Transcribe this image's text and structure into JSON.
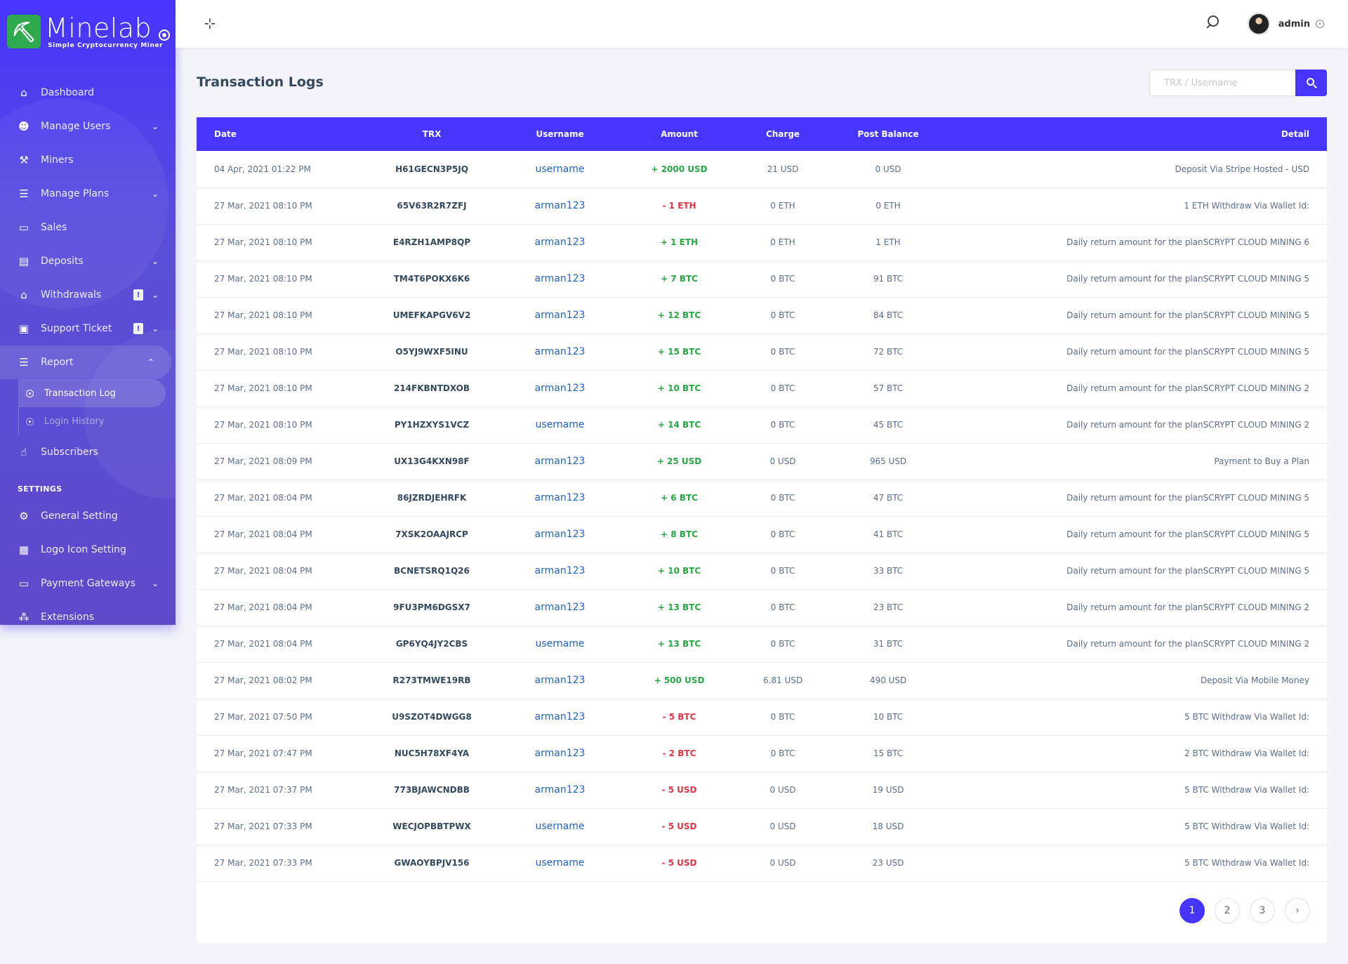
{
  "brand": {
    "name": "Minelab",
    "tagline": "Simple Cryptocurrency Miner"
  },
  "sidebar": {
    "items": [
      {
        "label": "Dashboard",
        "icon": "home-icon",
        "glyph": "⌂"
      },
      {
        "label": "Manage Users",
        "icon": "users-icon",
        "glyph": "☻",
        "arrow": "⌄"
      },
      {
        "label": "Miners",
        "icon": "hammer-icon",
        "glyph": "⚒"
      },
      {
        "label": "Manage Plans",
        "icon": "list-icon",
        "glyph": "☰",
        "arrow": "⌄"
      },
      {
        "label": "Sales",
        "icon": "card-icon",
        "glyph": "▭"
      },
      {
        "label": "Deposits",
        "icon": "wallet-icon",
        "glyph": "▤",
        "arrow": "⌄"
      },
      {
        "label": "Withdrawals",
        "icon": "bank-icon",
        "glyph": "⌂",
        "badge": "!",
        "arrow": "⌄"
      },
      {
        "label": "Support Ticket",
        "icon": "ticket-icon",
        "glyph": "▣",
        "badge": "!",
        "arrow": "⌄"
      },
      {
        "label": "Report",
        "icon": "report-icon",
        "glyph": "☰",
        "arrow": "⌃"
      }
    ],
    "report_sub": [
      {
        "label": "Transaction Log"
      },
      {
        "label": "Login History"
      }
    ],
    "after": [
      {
        "label": "Subscribers",
        "icon": "thumbs-up-icon",
        "glyph": "☝"
      }
    ],
    "settings_title": "SETTINGS",
    "settings": [
      {
        "label": "General Setting",
        "icon": "gear-icon",
        "glyph": "⚙"
      },
      {
        "label": "Logo Icon Setting",
        "icon": "image-icon",
        "glyph": "▦"
      },
      {
        "label": "Payment Gateways",
        "icon": "credit-card-icon",
        "glyph": "▭",
        "arrow": "⌄"
      },
      {
        "label": "Extensions",
        "icon": "cubes-icon",
        "glyph": "⁂"
      }
    ]
  },
  "topbar": {
    "user_name": "admin"
  },
  "page": {
    "title": "Transaction Logs"
  },
  "search": {
    "placeholder": "TRX / Username"
  },
  "table": {
    "headers": [
      "Date",
      "TRX",
      "Username",
      "Amount",
      "Charge",
      "Post Balance",
      "Detail"
    ],
    "rows": [
      {
        "date": "04 Apr, 2021 01:22 PM",
        "trx": "H61GECN3P5JQ",
        "user": "username",
        "amount": "+ 2000 USD",
        "type": "pos",
        "charge": "21 USD",
        "post": "0 USD",
        "detail": "Deposit Via Stripe Hosted - USD"
      },
      {
        "date": "27 Mar, 2021 08:10 PM",
        "trx": "65V63R2R7ZFJ",
        "user": "arman123",
        "amount": "- 1 ETH",
        "type": "neg",
        "charge": "0 ETH",
        "post": "0 ETH",
        "detail": "1 ETH Withdraw Via Wallet Id:"
      },
      {
        "date": "27 Mar, 2021 08:10 PM",
        "trx": "E4RZH1AMP8QP",
        "user": "arman123",
        "amount": "+ 1 ETH",
        "type": "pos",
        "charge": "0 ETH",
        "post": "1 ETH",
        "detail": "Daily return amount for the planSCRYPT CLOUD MINING 6"
      },
      {
        "date": "27 Mar, 2021 08:10 PM",
        "trx": "TM4T6POKX6K6",
        "user": "arman123",
        "amount": "+ 7 BTC",
        "type": "pos",
        "charge": "0 BTC",
        "post": "91 BTC",
        "detail": "Daily return amount for the planSCRYPT CLOUD MINING 5"
      },
      {
        "date": "27 Mar, 2021 08:10 PM",
        "trx": "UMEFKAPGV6V2",
        "user": "arman123",
        "amount": "+ 12 BTC",
        "type": "pos",
        "charge": "0 BTC",
        "post": "84 BTC",
        "detail": "Daily return amount for the planSCRYPT CLOUD MINING 5"
      },
      {
        "date": "27 Mar, 2021 08:10 PM",
        "trx": "O5YJ9WXF5INU",
        "user": "arman123",
        "amount": "+ 15 BTC",
        "type": "pos",
        "charge": "0 BTC",
        "post": "72 BTC",
        "detail": "Daily return amount for the planSCRYPT CLOUD MINING 5"
      },
      {
        "date": "27 Mar, 2021 08:10 PM",
        "trx": "214FKBNTDXOB",
        "user": "arman123",
        "amount": "+ 10 BTC",
        "type": "pos",
        "charge": "0 BTC",
        "post": "57 BTC",
        "detail": "Daily return amount for the planSCRYPT CLOUD MINING 2"
      },
      {
        "date": "27 Mar, 2021 08:10 PM",
        "trx": "PY1HZXYS1VCZ",
        "user": "username",
        "amount": "+ 14 BTC",
        "type": "pos",
        "charge": "0 BTC",
        "post": "45 BTC",
        "detail": "Daily return amount for the planSCRYPT CLOUD MINING 2"
      },
      {
        "date": "27 Mar, 2021 08:09 PM",
        "trx": "UX13G4KXN98F",
        "user": "arman123",
        "amount": "+ 25 USD",
        "type": "pos",
        "charge": "0 USD",
        "post": "965 USD",
        "detail": "Payment to Buy a Plan"
      },
      {
        "date": "27 Mar, 2021 08:04 PM",
        "trx": "86JZRDJEHRFK",
        "user": "arman123",
        "amount": "+ 6 BTC",
        "type": "pos",
        "charge": "0 BTC",
        "post": "47 BTC",
        "detail": "Daily return amount for the planSCRYPT CLOUD MINING 5"
      },
      {
        "date": "27 Mar, 2021 08:04 PM",
        "trx": "7XSK2OAAJRCP",
        "user": "arman123",
        "amount": "+ 8 BTC",
        "type": "pos",
        "charge": "0 BTC",
        "post": "41 BTC",
        "detail": "Daily return amount for the planSCRYPT CLOUD MINING 5"
      },
      {
        "date": "27 Mar, 2021 08:04 PM",
        "trx": "BCNETSRQ1Q26",
        "user": "arman123",
        "amount": "+ 10 BTC",
        "type": "pos",
        "charge": "0 BTC",
        "post": "33 BTC",
        "detail": "Daily return amount for the planSCRYPT CLOUD MINING 5"
      },
      {
        "date": "27 Mar, 2021 08:04 PM",
        "trx": "9FU3PM6DGSX7",
        "user": "arman123",
        "amount": "+ 13 BTC",
        "type": "pos",
        "charge": "0 BTC",
        "post": "23 BTC",
        "detail": "Daily return amount for the planSCRYPT CLOUD MINING 2"
      },
      {
        "date": "27 Mar, 2021 08:04 PM",
        "trx": "GP6YQ4JY2CBS",
        "user": "username",
        "amount": "+ 13 BTC",
        "type": "pos",
        "charge": "0 BTC",
        "post": "31 BTC",
        "detail": "Daily return amount for the planSCRYPT CLOUD MINING 2"
      },
      {
        "date": "27 Mar, 2021 08:02 PM",
        "trx": "R273TMWE19RB",
        "user": "arman123",
        "amount": "+ 500 USD",
        "type": "pos",
        "charge": "6.81 USD",
        "post": "490 USD",
        "detail": "Deposit Via Mobile Money"
      },
      {
        "date": "27 Mar, 2021 07:50 PM",
        "trx": "U9SZOT4DWGG8",
        "user": "arman123",
        "amount": "- 5 BTC",
        "type": "neg",
        "charge": "0 BTC",
        "post": "10 BTC",
        "detail": "5 BTC Withdraw Via Wallet Id:"
      },
      {
        "date": "27 Mar, 2021 07:47 PM",
        "trx": "NUC5H78XF4YA",
        "user": "arman123",
        "amount": "- 2 BTC",
        "type": "neg",
        "charge": "0 BTC",
        "post": "15 BTC",
        "detail": "2 BTC Withdraw Via Wallet Id:"
      },
      {
        "date": "27 Mar, 2021 07:37 PM",
        "trx": "773BJAWCNDBB",
        "user": "arman123",
        "amount": "- 5 USD",
        "type": "neg",
        "charge": "0 USD",
        "post": "19 USD",
        "detail": "5 BTC Withdraw Via Wallet Id:"
      },
      {
        "date": "27 Mar, 2021 07:33 PM",
        "trx": "WECJOPBBTPWX",
        "user": "username",
        "amount": "- 5 USD",
        "type": "neg",
        "charge": "0 USD",
        "post": "18 USD",
        "detail": "5 BTC Withdraw Via Wallet Id:"
      },
      {
        "date": "27 Mar, 2021 07:33 PM",
        "trx": "GWAOYBPJV156",
        "user": "username",
        "amount": "- 5 USD",
        "type": "neg",
        "charge": "0 USD",
        "post": "23 USD",
        "detail": "5 BTC Withdraw Via Wallet Id:"
      }
    ]
  },
  "pagination": {
    "pages": [
      "1",
      "2",
      "3"
    ],
    "current": "1",
    "next": "›"
  },
  "colors": {
    "primary": "#4634ff",
    "positive": "#28a745",
    "negative": "#dc3545",
    "link": "#1e63c4"
  }
}
